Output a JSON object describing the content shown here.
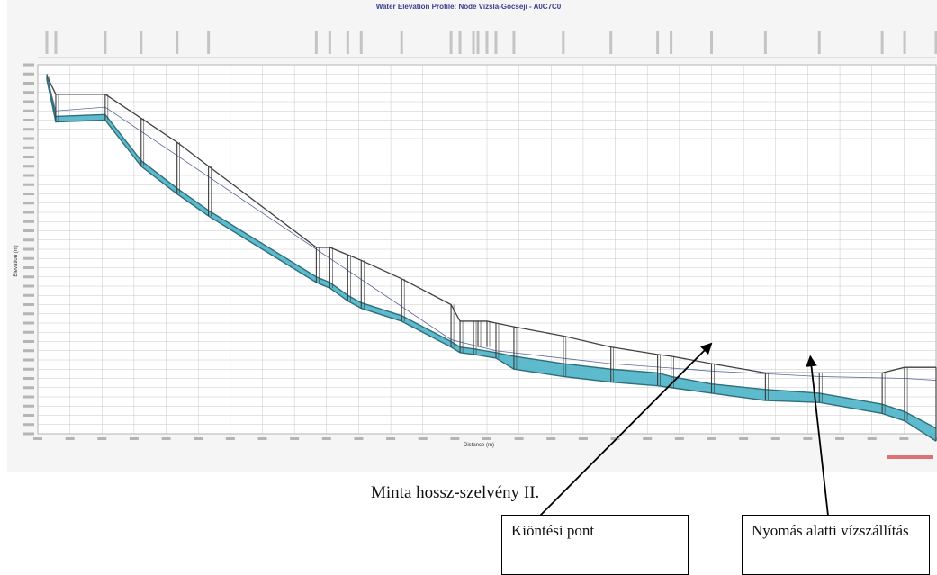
{
  "chart_data": {
    "type": "line",
    "title": "Water Elevation Profile: Node Vizsla-Gocseji - A0C7C0",
    "xlabel": "Distance (m)",
    "ylabel": "Elevation (m)",
    "xlim": [
      0,
      100
    ],
    "ylim": [
      0,
      100
    ],
    "series": [
      {
        "name": "",
        "role": "ground",
        "x": [
          1.0,
          2.0,
          7.5,
          11.5,
          15.5,
          19.0,
          31.0,
          32.5,
          34.5,
          36.0,
          40.5,
          46.0,
          47.0,
          48.5,
          49.0,
          50.0,
          51.0,
          53.0,
          58.5,
          63.8,
          69.0,
          70.5,
          75.0,
          81.0,
          87.0,
          94.0,
          96.5,
          100.0
        ],
        "y": [
          97.0,
          92.0,
          92.0,
          85.5,
          79.0,
          72.5,
          50.5,
          50.5,
          48.5,
          47.0,
          42.0,
          35.0,
          30.5,
          30.5,
          30.5,
          30.5,
          30.0,
          29.0,
          26.5,
          23.5,
          21.5,
          21.0,
          19.0,
          16.5,
          16.5,
          16.5,
          18.0,
          18.0
        ]
      },
      {
        "name": "",
        "role": "pipe-crown",
        "x": [
          1.0,
          2.0,
          7.5,
          11.5,
          15.5,
          19.0,
          31.0,
          32.5,
          34.5,
          36.0,
          40.5,
          46.0,
          47.0,
          48.5,
          51.0,
          53.0,
          58.5,
          63.8,
          69.0,
          70.5,
          75.0,
          81.0,
          87.0,
          94.0,
          96.5,
          100.0
        ],
        "y": [
          97.5,
          86.0,
          86.5,
          74.0,
          66.5,
          60.5,
          42.5,
          41.0,
          37.5,
          35.5,
          32.0,
          25.0,
          23.5,
          23.0,
          22.0,
          21.0,
          19.0,
          17.5,
          16.5,
          15.5,
          13.5,
          12.0,
          11.0,
          8.0,
          6.0,
          1.5
        ]
      },
      {
        "name": "",
        "role": "pipe-invert",
        "x": [
          1.0,
          2.0,
          7.5,
          11.5,
          15.5,
          19.0,
          31.0,
          32.5,
          34.5,
          36.0,
          40.5,
          46.0,
          47.0,
          48.5,
          51.0,
          53.0,
          58.5,
          63.8,
          69.0,
          70.5,
          75.0,
          81.0,
          87.0,
          94.0,
          96.5,
          100.0
        ],
        "y": [
          96.0,
          84.5,
          85.0,
          72.5,
          65.0,
          59.0,
          41.0,
          39.5,
          36.0,
          34.0,
          30.5,
          23.5,
          22.0,
          21.5,
          20.5,
          17.5,
          15.5,
          14.0,
          13.0,
          12.5,
          11.0,
          9.0,
          8.5,
          5.5,
          3.5,
          -2.0
        ]
      },
      {
        "name": "",
        "role": "hydraulic-grade",
        "x": [
          1.0,
          2.0,
          7.5,
          31.0,
          46.0,
          51.0,
          63.8,
          75.0,
          87.0,
          96.5,
          100.0
        ],
        "y": [
          97.0,
          87.5,
          88.5,
          50.0,
          25.5,
          22.5,
          19.0,
          17.0,
          15.5,
          15.0,
          14.5
        ]
      }
    ]
  },
  "caption": "Minta hossz-szelvény II.",
  "callouts": [
    {
      "label": "Kiöntési pont",
      "pointer_x": 75.0
    },
    {
      "label": "Nyomás alatti vízszállítás",
      "pointer_x": 86.0
    }
  ],
  "colors": {
    "ground": "#404040",
    "pipe": "#2f6f7a",
    "water": "#4bb4c8",
    "hgl": "#5a6b9a",
    "grid": "#c8c8c8",
    "title": "#3a3f8f"
  }
}
